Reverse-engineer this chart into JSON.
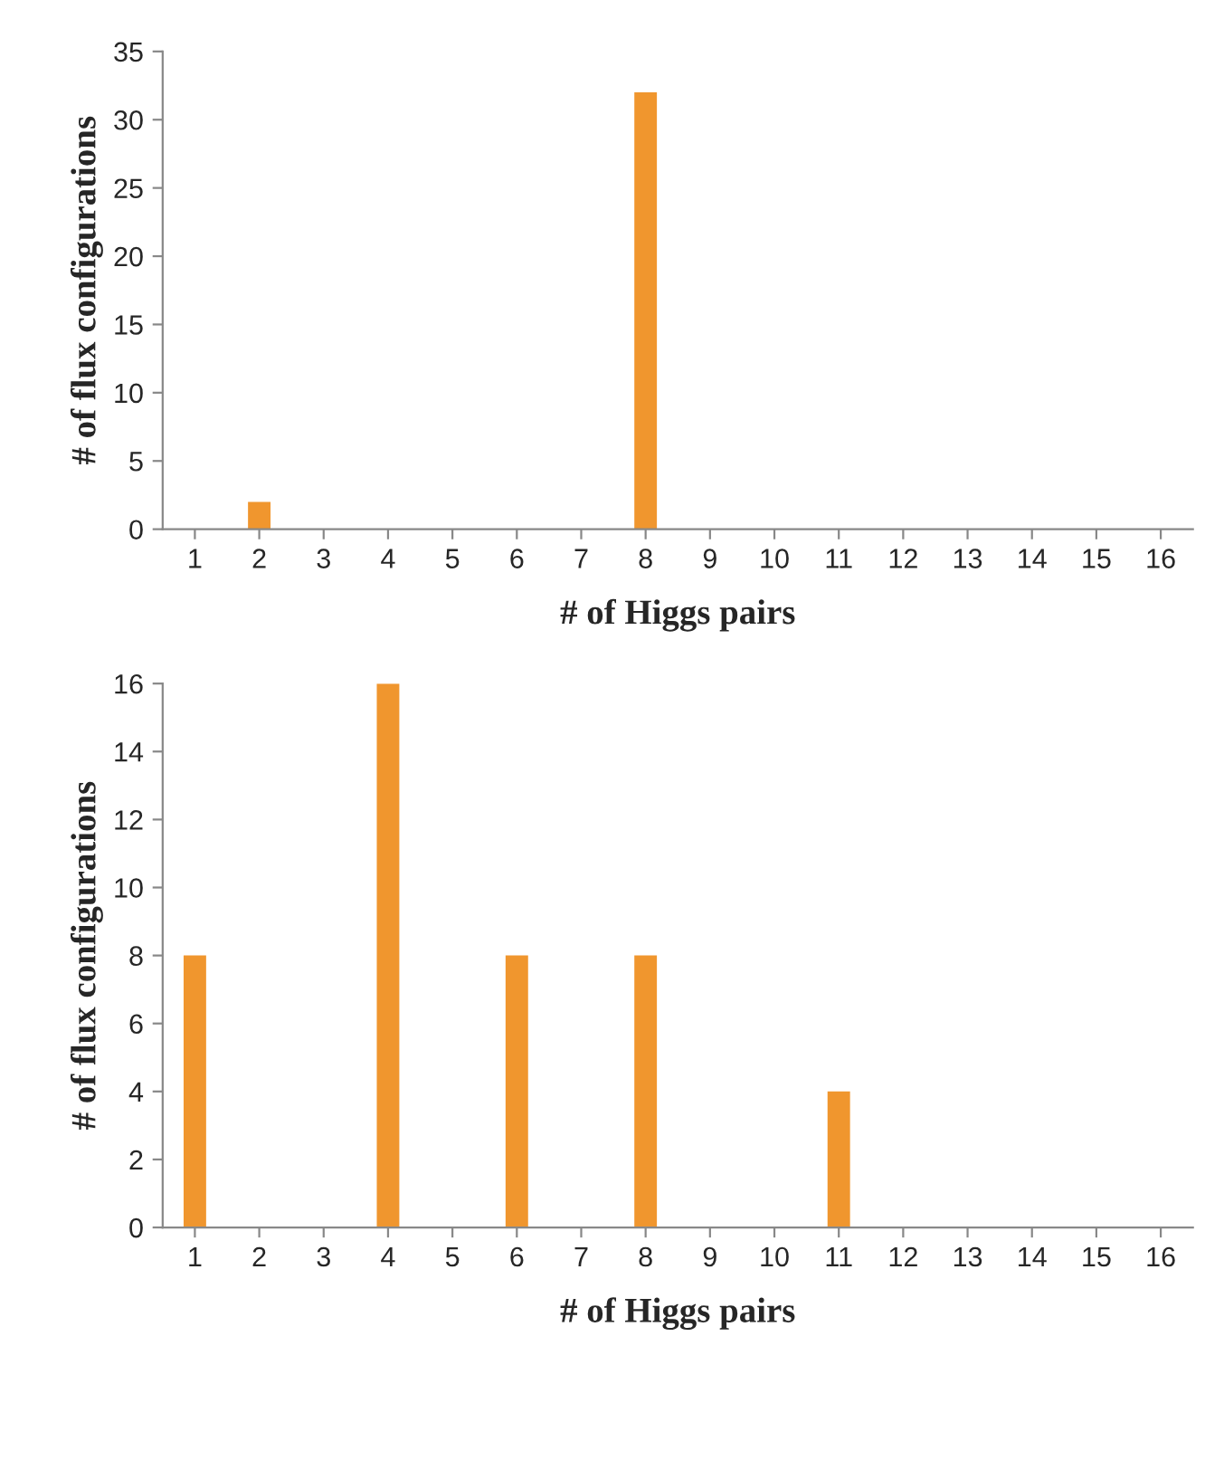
{
  "chart_data": [
    {
      "type": "bar",
      "xlabel": "# of Higgs pairs",
      "ylabel": "# of flux configurations",
      "categories": [
        "1",
        "2",
        "3",
        "4",
        "5",
        "6",
        "7",
        "8",
        "9",
        "10",
        "11",
        "12",
        "13",
        "14",
        "15",
        "16"
      ],
      "values": [
        0,
        2,
        0,
        0,
        0,
        0,
        0,
        32,
        0,
        0,
        0,
        0,
        0,
        0,
        0,
        0
      ],
      "color": "#f0962e",
      "ylim": [
        0,
        35
      ],
      "yticks": [
        0,
        5,
        10,
        15,
        20,
        25,
        30,
        35
      ],
      "grid": false,
      "legend": false
    },
    {
      "type": "bar",
      "xlabel": "# of Higgs pairs",
      "ylabel": "# of flux configurations",
      "categories": [
        "1",
        "2",
        "3",
        "4",
        "5",
        "6",
        "7",
        "8",
        "9",
        "10",
        "11",
        "12",
        "13",
        "14",
        "15",
        "16"
      ],
      "values": [
        8,
        0,
        0,
        16,
        0,
        8,
        0,
        8,
        0,
        0,
        4,
        0,
        0,
        0,
        0,
        0
      ],
      "color": "#f0962e",
      "ylim": [
        0,
        16
      ],
      "yticks": [
        0,
        2,
        4,
        6,
        8,
        10,
        12,
        14,
        16
      ],
      "grid": false,
      "legend": false
    }
  ]
}
